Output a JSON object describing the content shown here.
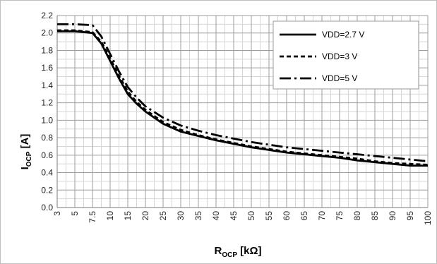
{
  "chart_data": {
    "type": "line",
    "xlabel": {
      "main": "R",
      "sub": "OCP",
      "unit": " [kΩ]"
    },
    "ylabel": {
      "main": "I",
      "sub": "OCP",
      "unit": " [A]"
    },
    "ylim": [
      0,
      2.2
    ],
    "y_major_step": 0.2,
    "y_minor_step": 0.1,
    "grid": true,
    "legend_position": "top-right",
    "categories": [
      "3",
      "5",
      "7.5",
      "10",
      "15",
      "20",
      "25",
      "30",
      "35",
      "40",
      "45",
      "50",
      "55",
      "60",
      "65",
      "70",
      "75",
      "80",
      "85",
      "90",
      "95",
      "100"
    ],
    "series": [
      {
        "name": "VDD=2.7 V",
        "dash": "solid",
        "points": [
          [
            0,
            2.02
          ],
          [
            1,
            2.02
          ],
          [
            2,
            2.0
          ],
          [
            2.5,
            1.88
          ],
          [
            3,
            1.68
          ],
          [
            3.5,
            1.48
          ],
          [
            4,
            1.3
          ],
          [
            4.5,
            1.19
          ],
          [
            5,
            1.1
          ],
          [
            6,
            0.96
          ],
          [
            7,
            0.87
          ],
          [
            8,
            0.82
          ],
          [
            9,
            0.77
          ],
          [
            10,
            0.73
          ],
          [
            11,
            0.69
          ],
          [
            12,
            0.66
          ],
          [
            13,
            0.63
          ],
          [
            14,
            0.61
          ],
          [
            15,
            0.59
          ],
          [
            16,
            0.57
          ],
          [
            17,
            0.54
          ],
          [
            18,
            0.52
          ],
          [
            19,
            0.5
          ],
          [
            20,
            0.48
          ],
          [
            21,
            0.48
          ]
        ]
      },
      {
        "name": "VDD=3 V",
        "dash": "short-dash",
        "points": [
          [
            0,
            2.03
          ],
          [
            1,
            2.03
          ],
          [
            2,
            2.01
          ],
          [
            2.5,
            1.9
          ],
          [
            3,
            1.71
          ],
          [
            3.5,
            1.51
          ],
          [
            4,
            1.33
          ],
          [
            4.5,
            1.21
          ],
          [
            5,
            1.12
          ],
          [
            6,
            0.98
          ],
          [
            7,
            0.89
          ],
          [
            8,
            0.83
          ],
          [
            9,
            0.78
          ],
          [
            10,
            0.74
          ],
          [
            11,
            0.7
          ],
          [
            12,
            0.67
          ],
          [
            13,
            0.64
          ],
          [
            14,
            0.62
          ],
          [
            15,
            0.6
          ],
          [
            16,
            0.58
          ],
          [
            17,
            0.56
          ],
          [
            18,
            0.53
          ],
          [
            19,
            0.51
          ],
          [
            20,
            0.5
          ],
          [
            21,
            0.49
          ]
        ]
      },
      {
        "name": "VDD=5 V",
        "dash": "long-dash-dot",
        "points": [
          [
            0,
            2.1
          ],
          [
            1,
            2.1
          ],
          [
            2,
            2.09
          ],
          [
            2.5,
            1.96
          ],
          [
            3,
            1.76
          ],
          [
            3.5,
            1.56
          ],
          [
            4,
            1.38
          ],
          [
            4.5,
            1.26
          ],
          [
            5,
            1.16
          ],
          [
            6,
            1.03
          ],
          [
            7,
            0.94
          ],
          [
            8,
            0.88
          ],
          [
            9,
            0.83
          ],
          [
            10,
            0.79
          ],
          [
            11,
            0.75
          ],
          [
            12,
            0.72
          ],
          [
            13,
            0.69
          ],
          [
            14,
            0.67
          ],
          [
            15,
            0.65
          ],
          [
            16,
            0.63
          ],
          [
            17,
            0.61
          ],
          [
            18,
            0.59
          ],
          [
            19,
            0.57
          ],
          [
            20,
            0.55
          ],
          [
            21,
            0.53
          ]
        ]
      }
    ]
  }
}
